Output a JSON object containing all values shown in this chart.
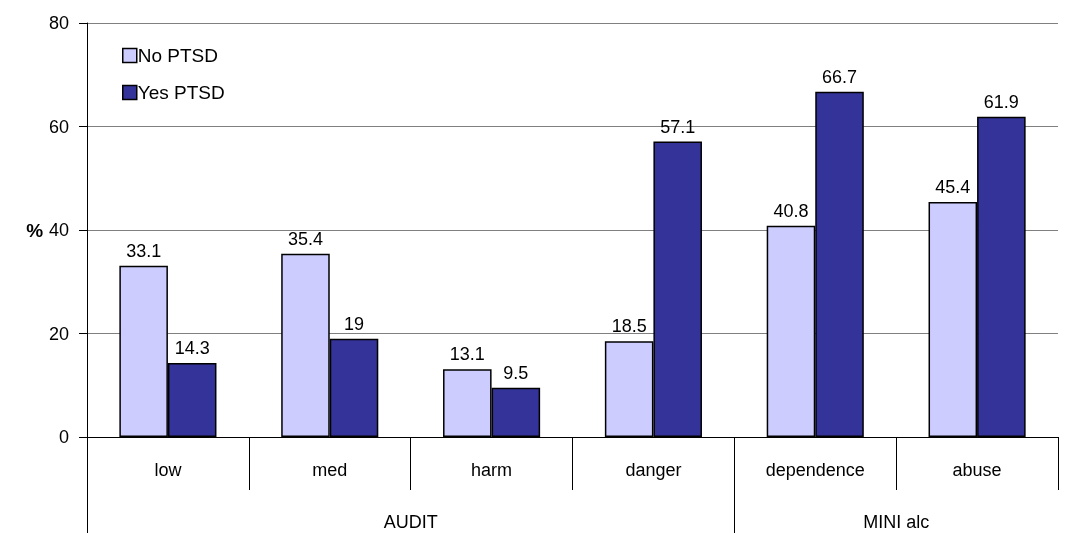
{
  "chart_data": {
    "type": "bar",
    "ylabel": "%",
    "categories": [
      "low",
      "med",
      "harm",
      "danger",
      "dependence",
      "abuse"
    ],
    "series": [
      {
        "name": "No PTSD",
        "color": "#ccccff",
        "values": [
          33.1,
          35.4,
          13.1,
          18.5,
          40.8,
          45.4
        ]
      },
      {
        "name": "Yes PTSD",
        "color": "#333399",
        "values": [
          14.3,
          19,
          9.5,
          57.1,
          66.7,
          61.9
        ]
      }
    ],
    "ylim": [
      0,
      80
    ],
    "yticks": [
      0,
      20,
      40,
      60,
      80
    ],
    "grid": "y",
    "legend": "top left",
    "data_labels": true,
    "annotations": [
      "AUDIT",
      "MINI alc"
    ]
  }
}
